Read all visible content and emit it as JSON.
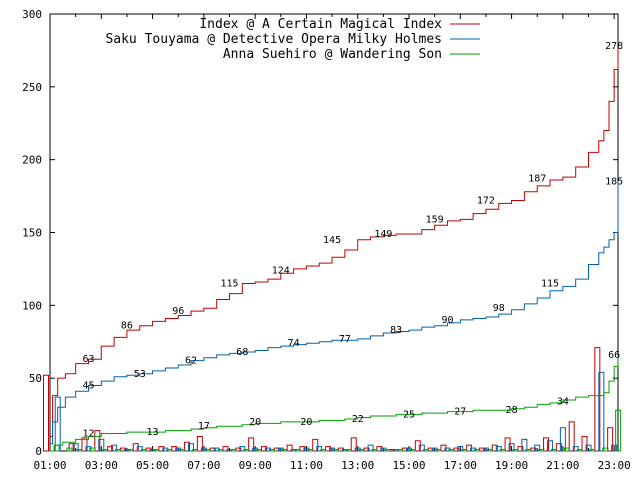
{
  "chart_data": {
    "type": "line",
    "title": "",
    "xlabel": "",
    "ylabel": "",
    "ylim": [
      0,
      300
    ],
    "yticks": [
      0,
      50,
      100,
      150,
      200,
      250,
      300
    ],
    "xlim_hours": [
      1,
      23.15
    ],
    "xtick_labels": [
      "01:00",
      "03:00",
      "05:00",
      "07:00",
      "09:00",
      "11:00",
      "13:00",
      "15:00",
      "17:00",
      "19:00",
      "21:00",
      "23:00"
    ],
    "grid": false,
    "legend_position": "top-right",
    "series": [
      {
        "name": "Index @ A Certain Magical Index",
        "color": "#c00000",
        "cumulative": [
          [
            1,
            10
          ],
          [
            1.1,
            38
          ],
          [
            1.3,
            50
          ],
          [
            1.6,
            53
          ],
          [
            2,
            60
          ],
          [
            2.5,
            63
          ],
          [
            3,
            72
          ],
          [
            3.5,
            78
          ],
          [
            4,
            83
          ],
          [
            4.5,
            86
          ],
          [
            5,
            89
          ],
          [
            5.5,
            91
          ],
          [
            6,
            93
          ],
          [
            6.5,
            96
          ],
          [
            7,
            98
          ],
          [
            7.5,
            104
          ],
          [
            8,
            108
          ],
          [
            8.5,
            115
          ],
          [
            9,
            116
          ],
          [
            9.5,
            118
          ],
          [
            10,
            122
          ],
          [
            10.5,
            125
          ],
          [
            11,
            127
          ],
          [
            11.5,
            129
          ],
          [
            12,
            133
          ],
          [
            12.5,
            138
          ],
          [
            13,
            145
          ],
          [
            13.5,
            147
          ],
          [
            14,
            148
          ],
          [
            14.5,
            149
          ],
          [
            15,
            149
          ],
          [
            15.5,
            152
          ],
          [
            16,
            155
          ],
          [
            16.5,
            158
          ],
          [
            17,
            159
          ],
          [
            17.5,
            163
          ],
          [
            18,
            166
          ],
          [
            18.5,
            170
          ],
          [
            19,
            172
          ],
          [
            19.5,
            178
          ],
          [
            20,
            182
          ],
          [
            20.5,
            186
          ],
          [
            21,
            188
          ],
          [
            21.5,
            195
          ],
          [
            22,
            205
          ],
          [
            22.4,
            213
          ],
          [
            22.6,
            220
          ],
          [
            22.8,
            240
          ],
          [
            23,
            262
          ],
          [
            23.15,
            278
          ]
        ],
        "labels": [
          [
            2.5,
            63
          ],
          [
            4,
            86
          ],
          [
            6,
            96
          ],
          [
            8,
            115
          ],
          [
            10,
            124
          ],
          [
            12,
            145
          ],
          [
            14,
            149
          ],
          [
            16,
            159
          ],
          [
            18,
            172
          ],
          [
            20,
            187
          ],
          [
            23,
            278
          ]
        ],
        "hourly": [
          [
            1,
            52
          ],
          [
            2,
            5
          ],
          [
            2.5,
            9
          ],
          [
            3,
            14
          ],
          [
            3.5,
            3
          ],
          [
            4,
            2
          ],
          [
            4.5,
            5
          ],
          [
            5,
            2
          ],
          [
            5.5,
            3
          ],
          [
            6,
            3
          ],
          [
            6.5,
            6
          ],
          [
            7,
            10
          ],
          [
            7.5,
            2
          ],
          [
            8,
            3
          ],
          [
            8.5,
            2
          ],
          [
            9,
            9
          ],
          [
            9.5,
            3
          ],
          [
            10,
            2
          ],
          [
            10.5,
            4
          ],
          [
            11,
            3
          ],
          [
            11.5,
            8
          ],
          [
            12,
            3
          ],
          [
            12.5,
            2
          ],
          [
            13,
            9
          ],
          [
            13.5,
            2
          ],
          [
            14,
            3
          ],
          [
            14.5,
            1
          ],
          [
            15,
            2
          ],
          [
            15.5,
            7
          ],
          [
            16,
            2
          ],
          [
            16.5,
            4
          ],
          [
            17,
            2
          ],
          [
            17.5,
            4
          ],
          [
            18,
            2
          ],
          [
            18.5,
            4
          ],
          [
            19,
            9
          ],
          [
            19.5,
            3
          ],
          [
            20,
            2
          ],
          [
            20.5,
            9
          ],
          [
            21,
            5
          ],
          [
            21.5,
            20
          ],
          [
            22,
            10
          ],
          [
            22.5,
            71
          ],
          [
            23,
            16
          ]
        ]
      },
      {
        "name": "Saku Touyama @ Detective Opera Milky Holmes",
        "color": "#0060ad",
        "cumulative": [
          [
            1,
            5
          ],
          [
            1.1,
            20
          ],
          [
            1.3,
            30
          ],
          [
            1.6,
            37
          ],
          [
            2,
            41
          ],
          [
            2.5,
            45
          ],
          [
            3,
            48
          ],
          [
            3.5,
            51
          ],
          [
            4,
            52
          ],
          [
            4.5,
            53
          ],
          [
            5,
            55
          ],
          [
            5.5,
            57
          ],
          [
            6,
            59
          ],
          [
            6.5,
            62
          ],
          [
            7,
            64
          ],
          [
            7.5,
            66
          ],
          [
            8,
            67
          ],
          [
            8.5,
            68
          ],
          [
            9,
            69
          ],
          [
            9.5,
            71
          ],
          [
            10,
            72
          ],
          [
            10.5,
            73
          ],
          [
            11,
            74
          ],
          [
            11.5,
            75
          ],
          [
            12,
            76
          ],
          [
            12.5,
            76
          ],
          [
            13,
            77
          ],
          [
            13.5,
            79
          ],
          [
            14,
            81
          ],
          [
            14.5,
            82
          ],
          [
            15,
            83
          ],
          [
            15.5,
            85
          ],
          [
            16,
            86
          ],
          [
            16.5,
            88
          ],
          [
            17,
            90
          ],
          [
            17.5,
            91
          ],
          [
            18,
            92
          ],
          [
            18.5,
            94
          ],
          [
            19,
            97
          ],
          [
            19.5,
            101
          ],
          [
            20,
            105
          ],
          [
            20.5,
            110
          ],
          [
            21,
            113
          ],
          [
            21.5,
            118
          ],
          [
            22,
            128
          ],
          [
            22.4,
            136
          ],
          [
            22.6,
            140
          ],
          [
            22.8,
            145
          ],
          [
            23,
            150
          ],
          [
            23.15,
            185
          ]
        ],
        "labels": [
          [
            2.5,
            45
          ],
          [
            4.5,
            53
          ],
          [
            6.5,
            62
          ],
          [
            8.5,
            68
          ],
          [
            10.5,
            74
          ],
          [
            12.5,
            77
          ],
          [
            14.5,
            83
          ],
          [
            16.5,
            90
          ],
          [
            18.5,
            98
          ],
          [
            20.5,
            115
          ],
          [
            23,
            185
          ]
        ],
        "hourly": [
          [
            1.3,
            37
          ],
          [
            2,
            5
          ],
          [
            2.5,
            3
          ],
          [
            3,
            8
          ],
          [
            3.5,
            4
          ],
          [
            4,
            1
          ],
          [
            4.5,
            3
          ],
          [
            5,
            1
          ],
          [
            5.5,
            2
          ],
          [
            6,
            2
          ],
          [
            6.5,
            5
          ],
          [
            7,
            2
          ],
          [
            7.5,
            2
          ],
          [
            8,
            1
          ],
          [
            8.5,
            3
          ],
          [
            9,
            2
          ],
          [
            9.5,
            2
          ],
          [
            10,
            2
          ],
          [
            10.5,
            1
          ],
          [
            11,
            2
          ],
          [
            11.5,
            3
          ],
          [
            12,
            2
          ],
          [
            12.5,
            1
          ],
          [
            13,
            2
          ],
          [
            13.5,
            4
          ],
          [
            14,
            2
          ],
          [
            14.5,
            1
          ],
          [
            15,
            2
          ],
          [
            15.5,
            4
          ],
          [
            16,
            2
          ],
          [
            16.5,
            2
          ],
          [
            17,
            3
          ],
          [
            17.5,
            2
          ],
          [
            18,
            2
          ],
          [
            18.5,
            3
          ],
          [
            19,
            5
          ],
          [
            19.5,
            8
          ],
          [
            20,
            4
          ],
          [
            20.5,
            7
          ],
          [
            21,
            16
          ],
          [
            21.5,
            3
          ],
          [
            22,
            4
          ],
          [
            22.5,
            54
          ],
          [
            23,
            4
          ]
        ]
      },
      {
        "name": "Anna Suehiro @ Wandering Son",
        "color": "#00a000",
        "cumulative": [
          [
            1,
            0
          ],
          [
            1.2,
            4
          ],
          [
            1.5,
            6
          ],
          [
            2,
            8
          ],
          [
            2.5,
            10
          ],
          [
            3,
            12
          ],
          [
            3.5,
            12
          ],
          [
            4,
            13
          ],
          [
            4.5,
            13
          ],
          [
            5,
            13
          ],
          [
            5.5,
            14
          ],
          [
            6,
            14
          ],
          [
            6.5,
            15
          ],
          [
            7,
            16
          ],
          [
            7.5,
            17
          ],
          [
            8,
            17
          ],
          [
            8.5,
            18
          ],
          [
            9,
            19
          ],
          [
            9.5,
            19
          ],
          [
            10,
            20
          ],
          [
            10.5,
            20
          ],
          [
            11,
            20
          ],
          [
            11.5,
            21
          ],
          [
            12,
            21
          ],
          [
            12.5,
            22
          ],
          [
            13,
            23
          ],
          [
            13.5,
            24
          ],
          [
            14,
            24
          ],
          [
            14.5,
            25
          ],
          [
            15,
            25
          ],
          [
            15.5,
            26
          ],
          [
            16,
            26
          ],
          [
            16.5,
            27
          ],
          [
            17,
            27
          ],
          [
            17.5,
            28
          ],
          [
            18,
            28
          ],
          [
            18.5,
            28
          ],
          [
            19,
            29
          ],
          [
            19.5,
            30
          ],
          [
            20,
            32
          ],
          [
            20.5,
            33
          ],
          [
            21,
            35
          ],
          [
            21.5,
            37
          ],
          [
            22,
            38
          ],
          [
            22.4,
            38
          ],
          [
            22.6,
            40
          ],
          [
            22.8,
            48
          ],
          [
            23,
            58
          ],
          [
            23.15,
            66
          ]
        ],
        "labels": [
          [
            2.5,
            12
          ],
          [
            5,
            13
          ],
          [
            7,
            17
          ],
          [
            9,
            20
          ],
          [
            11,
            20
          ],
          [
            13,
            22
          ],
          [
            15,
            25
          ],
          [
            17,
            27
          ],
          [
            19,
            28
          ],
          [
            21,
            34
          ],
          [
            23,
            66
          ]
        ],
        "hourly": [
          [
            1.1,
            4
          ],
          [
            1.6,
            2
          ],
          [
            2,
            1
          ],
          [
            2.5,
            2
          ],
          [
            3,
            1
          ],
          [
            3.5,
            1
          ],
          [
            4,
            1
          ],
          [
            4.5,
            1
          ],
          [
            5,
            1
          ],
          [
            5.5,
            1
          ],
          [
            6,
            1
          ],
          [
            6.5,
            1
          ],
          [
            7,
            1
          ],
          [
            7.5,
            1
          ],
          [
            8,
            1
          ],
          [
            8.5,
            1
          ],
          [
            9,
            1
          ],
          [
            9.5,
            1
          ],
          [
            10,
            1
          ],
          [
            10.5,
            1
          ],
          [
            11,
            1
          ],
          [
            11.5,
            1
          ],
          [
            12,
            1
          ],
          [
            12.5,
            1
          ],
          [
            13,
            1
          ],
          [
            13.5,
            1
          ],
          [
            14,
            1
          ],
          [
            14.5,
            1
          ],
          [
            15,
            1
          ],
          [
            15.5,
            1
          ],
          [
            16,
            1
          ],
          [
            16.5,
            1
          ],
          [
            17,
            1
          ],
          [
            17.5,
            1
          ],
          [
            18,
            1
          ],
          [
            18.5,
            1
          ],
          [
            19,
            1
          ],
          [
            19.5,
            1
          ],
          [
            20,
            1
          ],
          [
            20.5,
            1
          ],
          [
            21,
            2
          ],
          [
            21.5,
            1
          ],
          [
            22,
            1
          ],
          [
            22.5,
            2
          ],
          [
            23,
            28
          ]
        ]
      }
    ]
  }
}
